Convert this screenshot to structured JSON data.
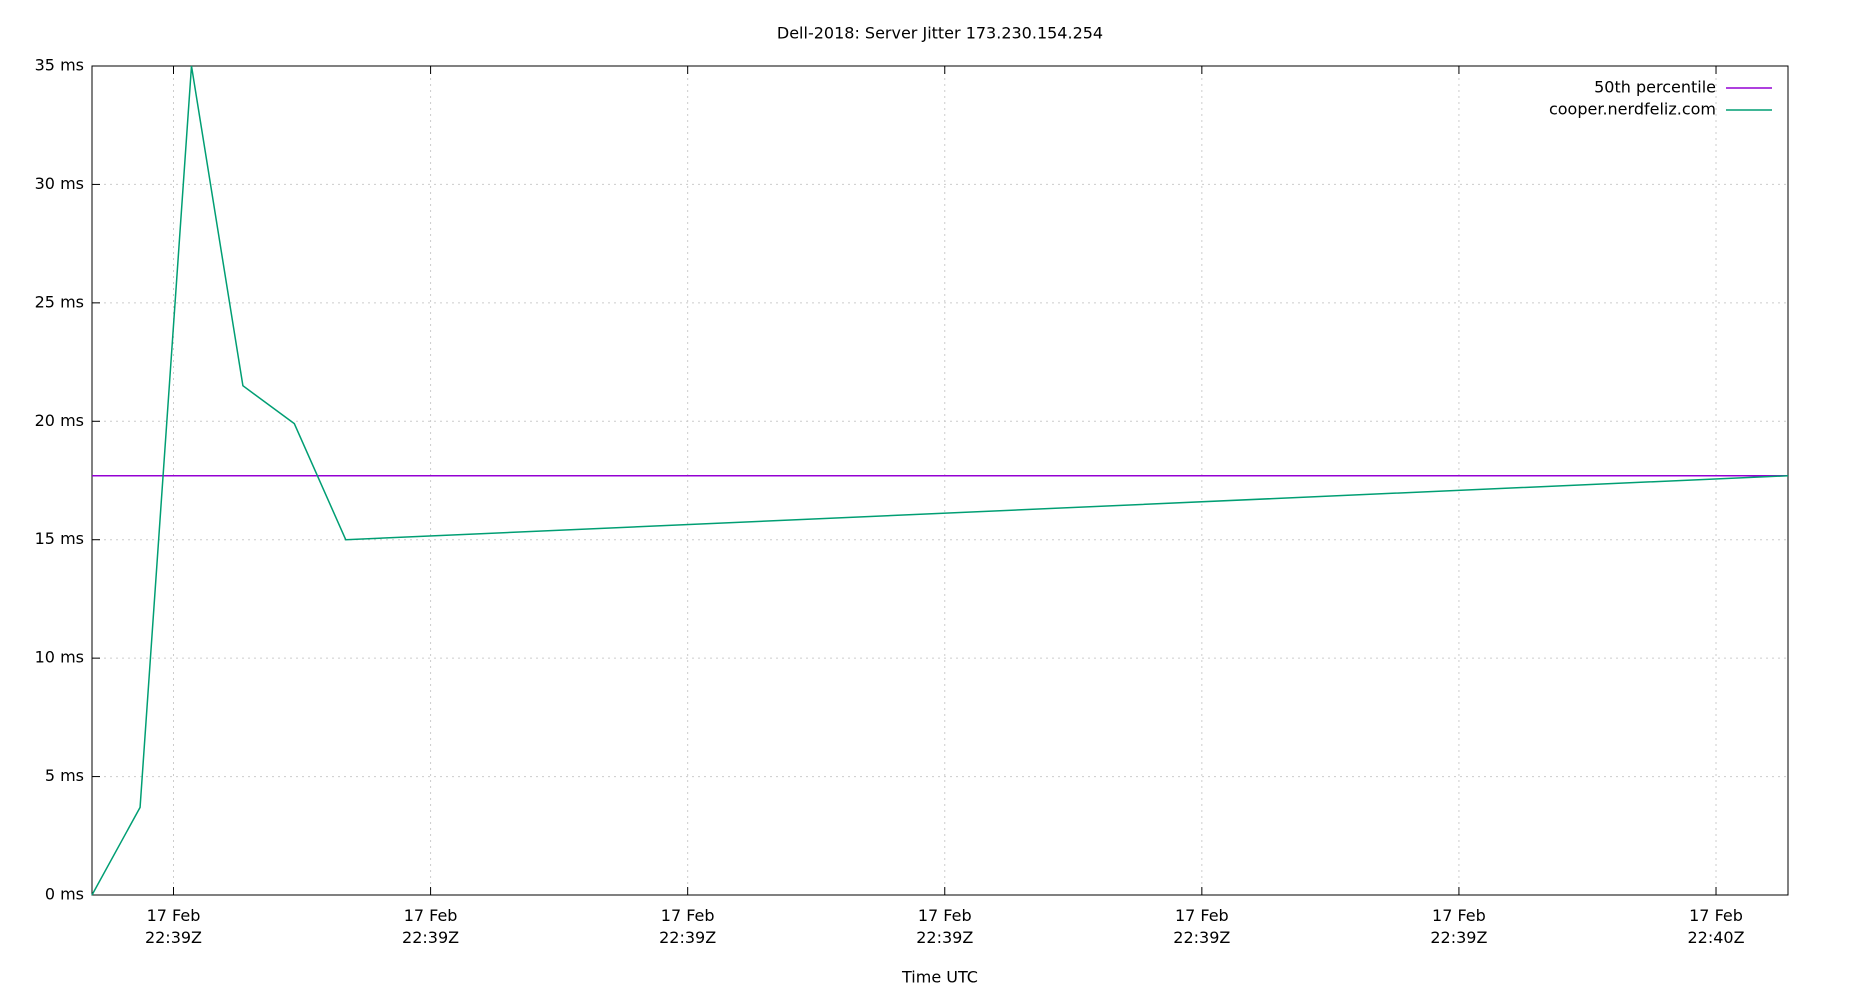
{
  "chart_data": {
    "type": "line",
    "title": "Dell-2018: Server Jitter 173.230.154.254",
    "x_label": "Time UTC",
    "xlim": [
      81536.83,
      81602.8
    ],
    "ylim": [
      0,
      35
    ],
    "xticks": [
      {
        "value": 81540,
        "label": "17 Feb\n22:39Z"
      },
      {
        "value": 81550,
        "label": "17 Feb\n22:39Z"
      },
      {
        "value": 81560,
        "label": "17 Feb\n22:39Z"
      },
      {
        "value": 81570,
        "label": "17 Feb\n22:39Z"
      },
      {
        "value": 81580,
        "label": "17 Feb\n22:39Z"
      },
      {
        "value": 81590,
        "label": "17 Feb\n22:39Z"
      },
      {
        "value": 81600,
        "label": "17 Feb\n22:40Z"
      }
    ],
    "yticks": [
      {
        "value": 0,
        "label": "0 ms"
      },
      {
        "value": 5,
        "label": "5 ms"
      },
      {
        "value": 10,
        "label": "10 ms"
      },
      {
        "value": 15,
        "label": "15 ms"
      },
      {
        "value": 20,
        "label": "20 ms"
      },
      {
        "value": 25,
        "label": "25 ms"
      },
      {
        "value": 30,
        "label": "30 ms"
      },
      {
        "value": 35,
        "label": "35 ms"
      }
    ],
    "grid": true,
    "legend": "top-right",
    "series": [
      {
        "name": "50th percentile",
        "color": "#9400d3",
        "x": [
          81536.83,
          81602.8
        ],
        "values": [
          17.7,
          17.7
        ]
      },
      {
        "name": "cooper.nerdfeliz.com",
        "color": "#009e73",
        "x": [
          81536.83,
          81538.7,
          81540.7,
          81542.7,
          81544.7,
          81546.7,
          81602.8
        ],
        "values": [
          0,
          3.7,
          35,
          21.5,
          19.9,
          15,
          17.7
        ]
      }
    ]
  }
}
